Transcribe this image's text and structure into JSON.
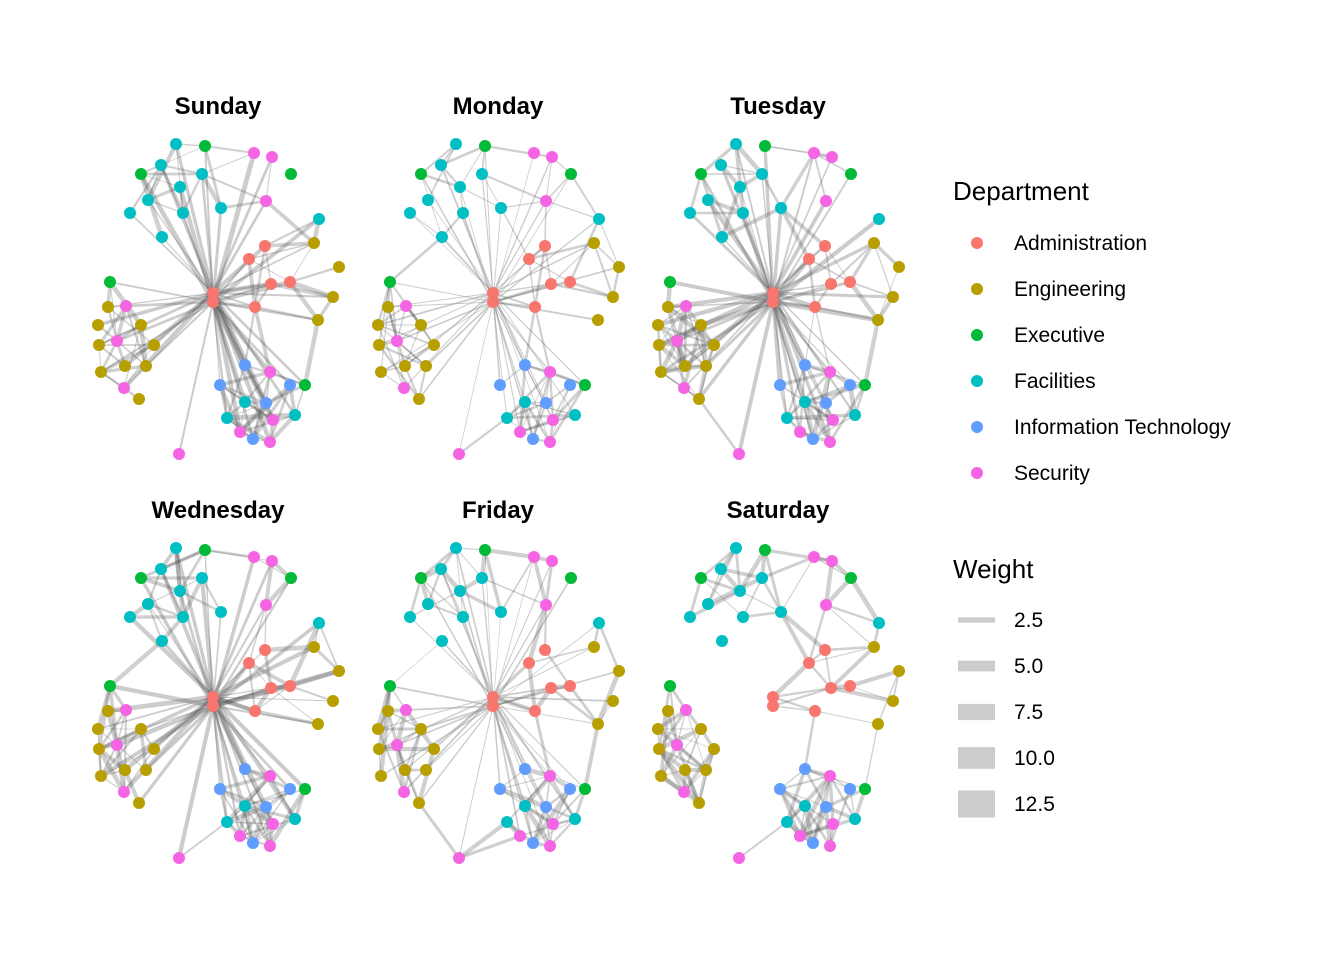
{
  "chart_data": {
    "type": "network",
    "title": "",
    "panels": [
      {
        "title": "Sunday",
        "density": "high",
        "hub_edges": "many"
      },
      {
        "title": "Monday",
        "density": "low",
        "hub_edges": "many-thin"
      },
      {
        "title": "Tuesday",
        "density": "high",
        "hub_edges": "many"
      },
      {
        "title": "Wednesday",
        "density": "high",
        "hub_edges": "many"
      },
      {
        "title": "Friday",
        "density": "medium",
        "hub_edges": "many-thin"
      },
      {
        "title": "Saturday",
        "density": "clustered",
        "hub_edges": "none"
      }
    ],
    "legend_department": {
      "title": "Department",
      "items": [
        {
          "label": "Administration",
          "color": "#F8766D"
        },
        {
          "label": "Engineering",
          "color": "#B79F00"
        },
        {
          "label": "Executive",
          "color": "#00BA38"
        },
        {
          "label": "Facilities",
          "color": "#00BFC4"
        },
        {
          "label": "Information Technology",
          "color": "#619CFF"
        },
        {
          "label": "Security",
          "color": "#F564E3"
        }
      ]
    },
    "legend_weight": {
      "title": "Weight",
      "items": [
        {
          "label": "2.5",
          "value": 2.5
        },
        {
          "label": "5.0",
          "value": 5.0
        },
        {
          "label": "7.5",
          "value": 7.5
        },
        {
          "label": "10.0",
          "value": 10.0
        },
        {
          "label": "12.5",
          "value": 12.5
        }
      ]
    }
  }
}
